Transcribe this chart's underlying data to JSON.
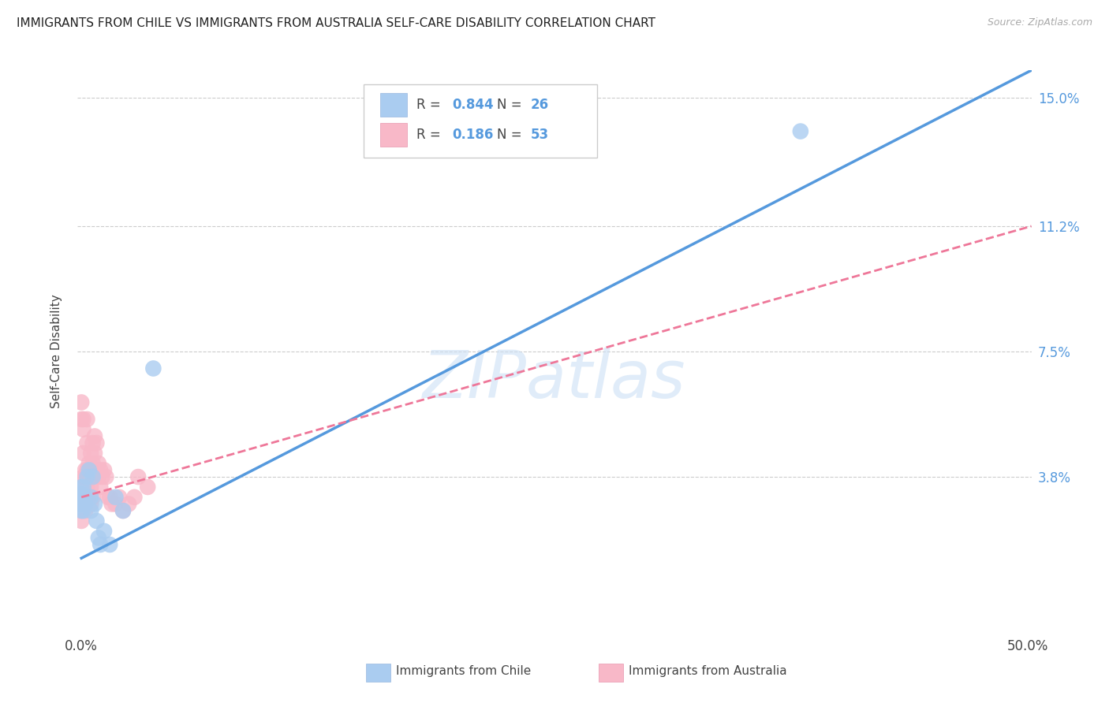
{
  "title": "IMMIGRANTS FROM CHILE VS IMMIGRANTS FROM AUSTRALIA SELF-CARE DISABILITY CORRELATION CHART",
  "source": "Source: ZipAtlas.com",
  "ylabel": "Self-Care Disability",
  "y_ticks": [
    0.0,
    0.038,
    0.075,
    0.112,
    0.15
  ],
  "y_tick_labels": [
    "",
    "3.8%",
    "7.5%",
    "11.2%",
    "15.0%"
  ],
  "xlim": [
    -0.002,
    0.502
  ],
  "ylim": [
    -0.008,
    0.158
  ],
  "legend_r_chile": "0.844",
  "legend_n_chile": "26",
  "legend_r_aus": "0.186",
  "legend_n_aus": "53",
  "legend_label_chile": "Immigrants from Chile",
  "legend_label_aus": "Immigrants from Australia",
  "chile_color": "#aaccf0",
  "australia_color": "#f8b8c8",
  "trendline_chile_color": "#5599dd",
  "trendline_aus_color": "#ee7799",
  "watermark_text": "ZIPatlas",
  "chile_scatter_x": [
    0.0,
    0.0,
    0.0,
    0.0,
    0.0,
    0.001,
    0.001,
    0.001,
    0.001,
    0.002,
    0.002,
    0.003,
    0.004,
    0.005,
    0.005,
    0.006,
    0.007,
    0.008,
    0.009,
    0.01,
    0.012,
    0.015,
    0.018,
    0.022,
    0.38,
    0.038
  ],
  "chile_scatter_y": [
    0.03,
    0.032,
    0.028,
    0.033,
    0.035,
    0.03,
    0.032,
    0.028,
    0.035,
    0.03,
    0.032,
    0.038,
    0.04,
    0.032,
    0.028,
    0.038,
    0.03,
    0.025,
    0.02,
    0.018,
    0.022,
    0.018,
    0.032,
    0.028,
    0.14,
    0.07
  ],
  "aus_scatter_x": [
    0.0,
    0.0,
    0.0,
    0.0,
    0.0,
    0.0,
    0.001,
    0.001,
    0.001,
    0.001,
    0.001,
    0.001,
    0.002,
    0.002,
    0.002,
    0.002,
    0.002,
    0.003,
    0.003,
    0.003,
    0.003,
    0.004,
    0.004,
    0.004,
    0.005,
    0.005,
    0.005,
    0.005,
    0.006,
    0.006,
    0.006,
    0.006,
    0.007,
    0.007,
    0.008,
    0.008,
    0.009,
    0.009,
    0.01,
    0.01,
    0.011,
    0.012,
    0.013,
    0.014,
    0.015,
    0.016,
    0.018,
    0.02,
    0.022,
    0.025,
    0.028,
    0.03,
    0.035
  ],
  "aus_scatter_y": [
    0.055,
    0.06,
    0.035,
    0.032,
    0.028,
    0.025,
    0.055,
    0.052,
    0.045,
    0.038,
    0.033,
    0.03,
    0.04,
    0.038,
    0.035,
    0.03,
    0.028,
    0.055,
    0.048,
    0.04,
    0.035,
    0.042,
    0.038,
    0.032,
    0.045,
    0.04,
    0.035,
    0.03,
    0.048,
    0.042,
    0.038,
    0.032,
    0.05,
    0.045,
    0.048,
    0.04,
    0.042,
    0.038,
    0.04,
    0.035,
    0.038,
    0.04,
    0.038,
    0.032,
    0.032,
    0.03,
    0.03,
    0.032,
    0.028,
    0.03,
    0.032,
    0.038,
    0.035
  ],
  "chile_trendline_x": [
    0.0,
    0.502
  ],
  "chile_trendline_y": [
    0.014,
    0.158
  ],
  "aus_trendline_x": [
    0.0,
    0.502
  ],
  "aus_trendline_y": [
    0.032,
    0.112
  ],
  "background_color": "#ffffff",
  "grid_color": "#cccccc"
}
